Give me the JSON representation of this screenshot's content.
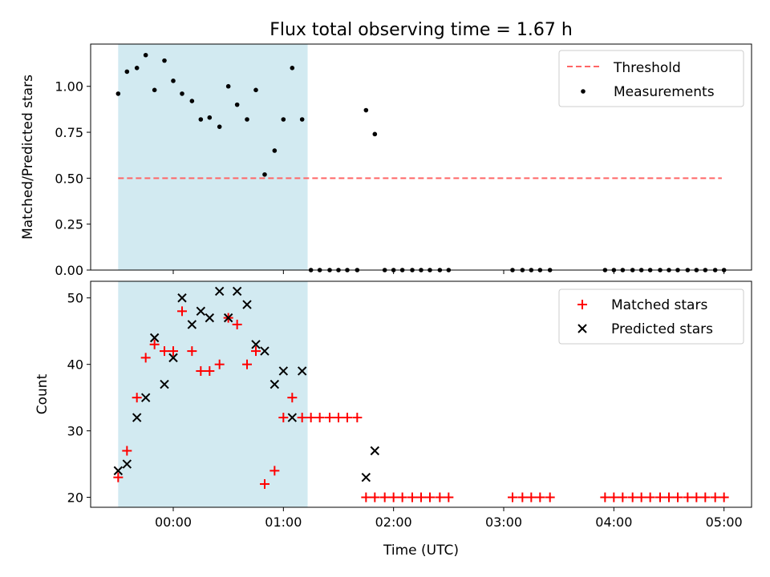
{
  "figure_title": "Flux total observing time = 1.67 h",
  "chart_data": [
    {
      "type": "scatter",
      "title": "Flux total observing time = 1.67 h",
      "xlabel": "",
      "ylabel": "Matched/Predicted stars",
      "x_unit": "hours since 00:00 UTC",
      "xlim": [
        -0.75,
        5.25
      ],
      "ylim": [
        0.0,
        1.23
      ],
      "yticks": [
        0.0,
        0.25,
        0.5,
        0.75,
        1.0
      ],
      "ytick_labels": [
        "0.00",
        "0.25",
        "0.50",
        "0.75",
        "1.00"
      ],
      "xtick_labels_shown": false,
      "highlight_span": {
        "x_start": -0.5,
        "x_end": 1.22,
        "color": "#add8e6"
      },
      "legend_position": "upper right",
      "series": [
        {
          "name": "Threshold",
          "kind": "line",
          "style": "dashed",
          "color": "#ff6666",
          "x": [
            -0.5,
            4.98
          ],
          "y": [
            0.5,
            0.5
          ]
        },
        {
          "name": "Measurements",
          "kind": "scatter",
          "marker": "dot",
          "color": "#000000",
          "x": [
            -0.5,
            -0.42,
            -0.33,
            -0.25,
            -0.17,
            -0.08,
            0.0,
            0.08,
            0.17,
            0.25,
            0.33,
            0.42,
            0.5,
            0.58,
            0.67,
            0.75,
            0.83,
            0.92,
            1.0,
            1.08,
            1.17,
            1.25,
            1.33,
            1.42,
            1.5,
            1.58,
            1.67,
            1.75,
            1.83,
            1.92,
            2.0,
            2.08,
            2.17,
            2.25,
            2.33,
            2.42,
            2.5,
            3.08,
            3.17,
            3.25,
            3.33,
            3.42,
            3.92,
            4.0,
            4.08,
            4.17,
            4.25,
            4.33,
            4.42,
            4.5,
            4.58,
            4.67,
            4.75,
            4.83,
            4.92,
            5.0
          ],
          "y": [
            0.96,
            1.08,
            1.1,
            1.17,
            0.98,
            1.14,
            1.03,
            0.96,
            0.92,
            0.82,
            0.83,
            0.78,
            1.0,
            0.9,
            0.82,
            0.98,
            0.52,
            0.65,
            0.82,
            1.1,
            0.82,
            0.0,
            0.0,
            0.0,
            0.0,
            0.0,
            0.0,
            0.87,
            0.74,
            0.0,
            0.0,
            0.0,
            0.0,
            0.0,
            0.0,
            0.0,
            0.0,
            0.0,
            0.0,
            0.0,
            0.0,
            0.0,
            0.0,
            0.0,
            0.0,
            0.0,
            0.0,
            0.0,
            0.0,
            0.0,
            0.0,
            0.0,
            0.0,
            0.0,
            0.0,
            0.0
          ]
        }
      ]
    },
    {
      "type": "scatter",
      "title": "",
      "xlabel": "Time (UTC)",
      "ylabel": "Count",
      "x_unit": "hours since 00:00 UTC",
      "xlim": [
        -0.75,
        5.25
      ],
      "ylim": [
        18.5,
        52.5
      ],
      "yticks": [
        20,
        30,
        40,
        50
      ],
      "ytick_labels": [
        "20",
        "30",
        "40",
        "50"
      ],
      "xticks": [
        0,
        1,
        2,
        3,
        4,
        5
      ],
      "xtick_labels": [
        "00:00",
        "01:00",
        "02:00",
        "03:00",
        "04:00",
        "05:00"
      ],
      "highlight_span": {
        "x_start": -0.5,
        "x_end": 1.22,
        "color": "#add8e6"
      },
      "legend_position": "upper right",
      "series": [
        {
          "name": "Matched stars",
          "kind": "scatter",
          "marker": "plus",
          "color": "#ff0000",
          "x": [
            -0.5,
            -0.42,
            -0.33,
            -0.25,
            -0.17,
            -0.08,
            0.0,
            0.08,
            0.17,
            0.25,
            0.33,
            0.42,
            0.5,
            0.58,
            0.67,
            0.75,
            0.83,
            0.92,
            1.0,
            1.08,
            1.17,
            1.25,
            1.33,
            1.42,
            1.5,
            1.58,
            1.67,
            1.75,
            1.83,
            1.92,
            2.0,
            2.08,
            2.17,
            2.25,
            2.33,
            2.42,
            2.5,
            3.08,
            3.17,
            3.25,
            3.33,
            3.42,
            3.92,
            4.0,
            4.08,
            4.17,
            4.25,
            4.33,
            4.42,
            4.5,
            4.58,
            4.67,
            4.75,
            4.83,
            4.92,
            5.0
          ],
          "y": [
            23,
            27,
            35,
            41,
            43,
            42,
            42,
            48,
            42,
            39,
            39,
            40,
            47,
            46,
            40,
            42,
            22,
            24,
            32,
            35,
            32,
            32,
            32,
            32,
            32,
            32,
            32,
            20,
            20,
            20,
            20,
            20,
            20,
            20,
            20,
            20,
            20,
            20,
            20,
            20,
            20,
            20,
            20,
            20,
            20,
            20,
            20,
            20,
            20,
            20,
            20,
            20,
            20,
            20,
            20,
            20
          ]
        },
        {
          "name": "Predicted stars",
          "kind": "scatter",
          "marker": "x",
          "color": "#000000",
          "x": [
            -0.5,
            -0.42,
            -0.33,
            -0.25,
            -0.17,
            -0.08,
            0.0,
            0.08,
            0.17,
            0.25,
            0.33,
            0.42,
            0.5,
            0.58,
            0.67,
            0.75,
            0.83,
            0.92,
            1.0,
            1.08,
            1.17,
            1.75,
            1.83
          ],
          "y": [
            24,
            25,
            32,
            35,
            44,
            37,
            41,
            50,
            46,
            48,
            47,
            51,
            47,
            51,
            49,
            43,
            42,
            37,
            39,
            32,
            39,
            23,
            27
          ]
        }
      ]
    }
  ]
}
